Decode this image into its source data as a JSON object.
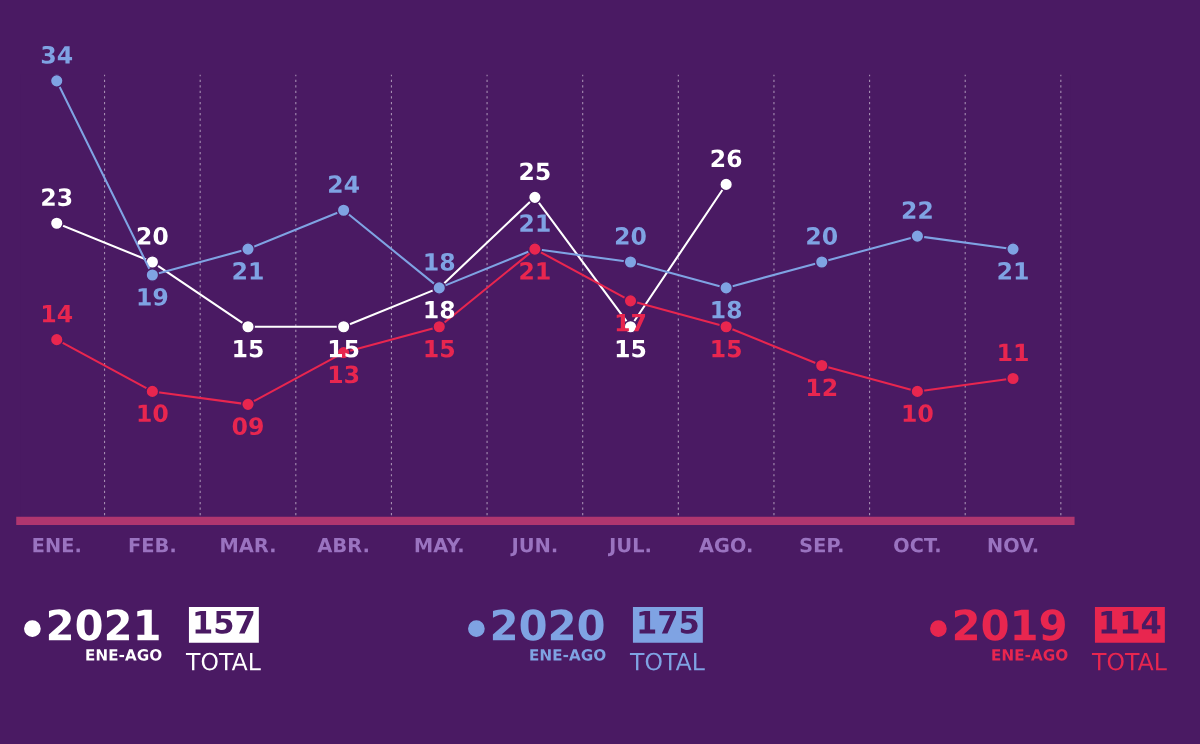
{
  "chart_data": {
    "type": "line",
    "categories": [
      "ENE.",
      "FEB.",
      "MAR.",
      "ABR.",
      "MAY.",
      "JUN.",
      "JUL.",
      "AGO.",
      "SEP.",
      "OCT.",
      "NOV."
    ],
    "ylim": [
      0,
      34.5
    ],
    "marker": "circle",
    "legend": "bottom",
    "series": [
      {
        "name": "2021",
        "color": "#ffffff",
        "values": [
          23,
          20,
          15,
          15,
          18,
          25,
          15,
          26,
          null,
          null,
          null
        ],
        "value_labels": [
          "23",
          "20",
          "15",
          "15",
          "18",
          "25",
          "15",
          "26",
          null,
          null,
          null
        ]
      },
      {
        "name": "2020",
        "color": "#7fa3e3",
        "values": [
          34,
          19,
          21,
          24,
          18,
          21,
          20,
          18,
          20,
          22,
          21
        ],
        "value_labels": [
          "34",
          "19",
          "21",
          "24",
          "18",
          "21",
          "20",
          "18",
          "20",
          "22",
          "21"
        ]
      },
      {
        "name": "2019",
        "color": "#e8264f",
        "values": [
          14,
          10,
          9,
          13,
          15,
          21,
          17,
          15,
          12,
          10,
          11
        ],
        "value_labels": [
          "14",
          "10",
          "09",
          "13",
          "15",
          "21",
          "17",
          "15",
          "12",
          "10",
          "11"
        ]
      }
    ],
    "annotations": [
      "ENE-AGO",
      "157",
      "TOTAL",
      "ENE-AGO",
      "175",
      "TOTAL",
      "ENE-AGO",
      "114",
      "TOTAL"
    ]
  }
}
